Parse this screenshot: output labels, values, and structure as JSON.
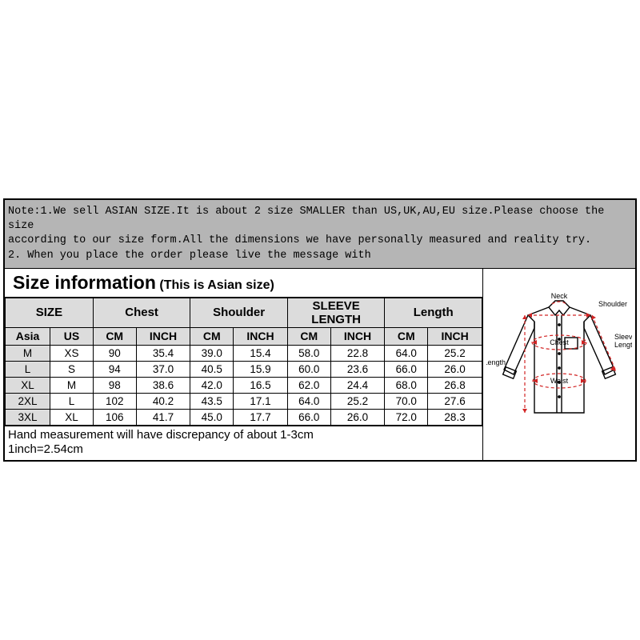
{
  "note": {
    "line1": "Note:1.We sell ASIAN SIZE.It is about 2 size SMALLER than US,UK,AU,EU size.Please choose the size",
    "line2": "according to our size form.All the dimensions we have personally measured and reality try.",
    "line3": "2. When you place the order please live the message with"
  },
  "title": {
    "main": "Size information",
    "sub": "(This is Asian size)"
  },
  "headers": {
    "size": "SIZE",
    "chest": "Chest",
    "shoulder": "Shoulder",
    "sleeve": "SLEEVE LENGTH",
    "length": "Length",
    "asia": "Asia",
    "us": "US",
    "cm": "CM",
    "inch": "INCH"
  },
  "rows": [
    {
      "asia": "M",
      "us": "XS",
      "chest_cm": "90",
      "chest_in": "35.4",
      "shoulder_cm": "39.0",
      "shoulder_in": "15.4",
      "sleeve_cm": "58.0",
      "sleeve_in": "22.8",
      "length_cm": "64.0",
      "length_in": "25.2"
    },
    {
      "asia": "L",
      "us": "S",
      "chest_cm": "94",
      "chest_in": "37.0",
      "shoulder_cm": "40.5",
      "shoulder_in": "15.9",
      "sleeve_cm": "60.0",
      "sleeve_in": "23.6",
      "length_cm": "66.0",
      "length_in": "26.0"
    },
    {
      "asia": "XL",
      "us": "M",
      "chest_cm": "98",
      "chest_in": "38.6",
      "shoulder_cm": "42.0",
      "shoulder_in": "16.5",
      "sleeve_cm": "62.0",
      "sleeve_in": "24.4",
      "length_cm": "68.0",
      "length_in": "26.8"
    },
    {
      "asia": "2XL",
      "us": "L",
      "chest_cm": "102",
      "chest_in": "40.2",
      "shoulder_cm": "43.5",
      "shoulder_in": "17.1",
      "sleeve_cm": "64.0",
      "sleeve_in": "25.2",
      "length_cm": "70.0",
      "length_in": "27.6"
    },
    {
      "asia": "3XL",
      "us": "XL",
      "chest_cm": "106",
      "chest_in": "41.7",
      "shoulder_cm": "45.0",
      "shoulder_in": "17.7",
      "sleeve_cm": "66.0",
      "sleeve_in": "26.0",
      "length_cm": "72.0",
      "length_in": "28.3"
    }
  ],
  "footer": {
    "line1": "Hand measurement will have discrepancy of about 1-3cm",
    "line2": "1inch=2.54cm"
  },
  "diagram": {
    "labels": {
      "neck": "Neck",
      "shoulder": "Shoulder",
      "chest": "Chest",
      "waist": "Waist",
      "length": "Length",
      "sleeve": "Sleeve\nLength"
    },
    "stroke_body": "#000000",
    "stroke_measure": "#d22424",
    "label_color": "#000000",
    "label_fontsize": 9
  },
  "colors": {
    "note_bg": "#b5b5b5",
    "header_bg": "#dcdcdc",
    "border": "#000000",
    "page_bg": "#ffffff"
  }
}
